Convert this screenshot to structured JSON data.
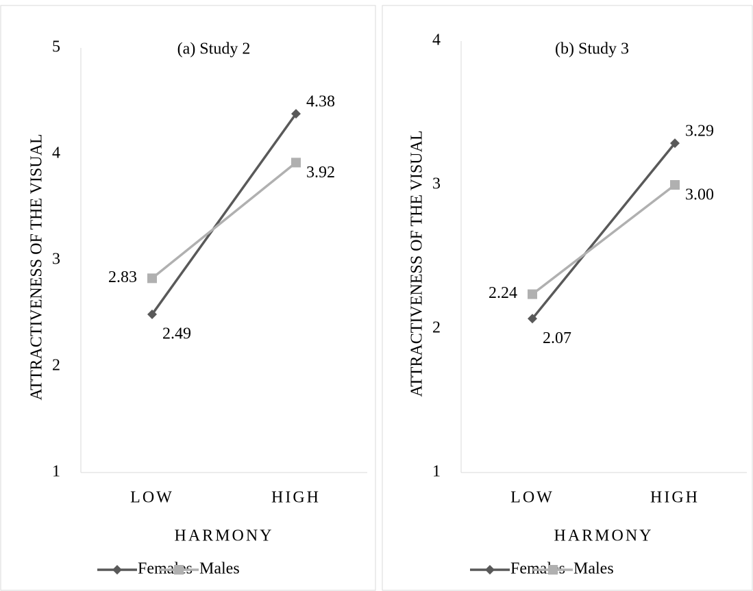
{
  "chart_data": [
    {
      "type": "line",
      "title": "(a) Study 2",
      "y_label": "ATTRACTIVENESS OF THE VISUAL",
      "x_label": "HARMONY",
      "categories": [
        "LOW",
        "HIGH"
      ],
      "ylim": [
        1,
        5
      ],
      "yticks": [
        1,
        2,
        3,
        4,
        5
      ],
      "legend": "bottom",
      "series": [
        {
          "name": "Females",
          "color": "#595959",
          "marker": "diamond",
          "values": [
            2.49,
            4.38
          ],
          "value_labels": [
            "2.49",
            "4.38"
          ]
        },
        {
          "name": "Males",
          "color": "#b0b0b0",
          "marker": "square",
          "values": [
            2.83,
            3.92
          ],
          "value_labels": [
            "2.83",
            "3.92"
          ]
        }
      ]
    },
    {
      "type": "line",
      "title": "(b) Study 3",
      "y_label": "ATTRACTIVENESS OF THE VISUAL",
      "x_label": "HARMONY",
      "categories": [
        "LOW",
        "HIGH"
      ],
      "ylim": [
        1,
        4
      ],
      "yticks": [
        1,
        2,
        3,
        4
      ],
      "legend": "bottom",
      "series": [
        {
          "name": "Females",
          "color": "#595959",
          "marker": "diamond",
          "values": [
            2.07,
            3.29
          ],
          "value_labels": [
            "2.07",
            "3.29"
          ]
        },
        {
          "name": "Males",
          "color": "#b0b0b0",
          "marker": "square",
          "values": [
            2.24,
            3.0
          ],
          "value_labels": [
            "2.24",
            "3.00"
          ]
        }
      ]
    }
  ]
}
